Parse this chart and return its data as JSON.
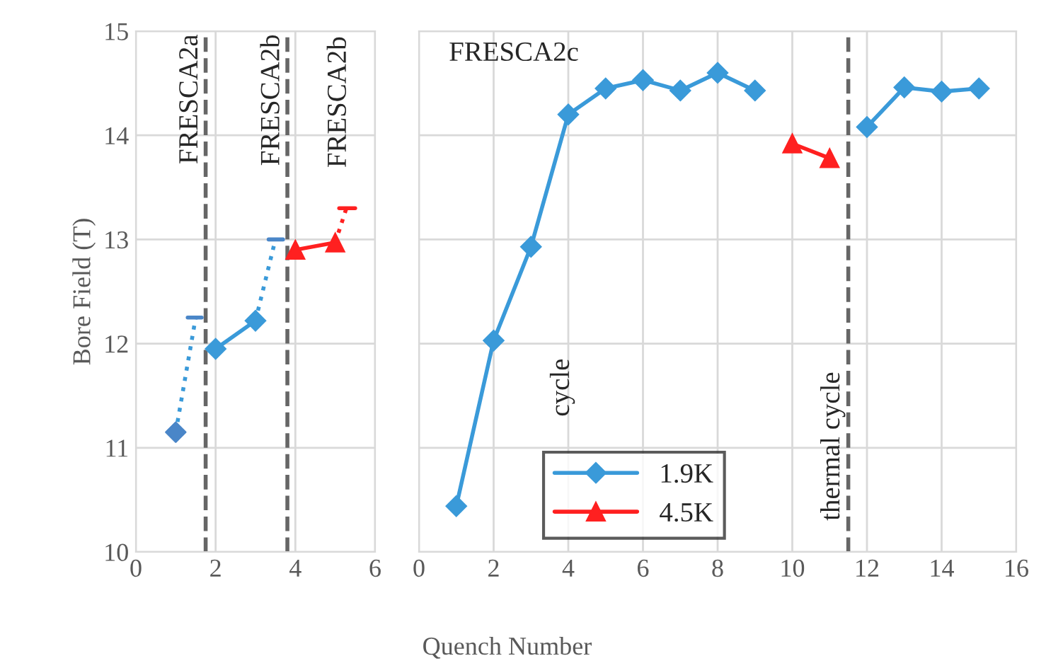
{
  "chart_data": [
    {
      "type": "line",
      "ylabel": "Bore Field (T)",
      "xlabel": "Quench Number",
      "xlim": [
        0,
        6
      ],
      "xticks": [
        0,
        2,
        4,
        6
      ],
      "ylim": [
        10,
        15
      ],
      "yticks": [
        10,
        11,
        12,
        13,
        14,
        15
      ],
      "grid": true,
      "series": [
        {
          "color": "#3a9ad9",
          "x": [
            1,
            1.5
          ],
          "values": [
            11.15,
            12.25
          ],
          "line_style": "dotted",
          "marker": "none"
        },
        {
          "color": "#4a86c8",
          "x": [
            1.3,
            1.65
          ],
          "values": [
            12.25,
            12.25
          ],
          "line_style": "solid",
          "marker": "none"
        },
        {
          "type": "scatter",
          "color": "#4a86c8",
          "x": [
            1
          ],
          "values": [
            11.15
          ],
          "marker": "diamond"
        },
        {
          "color": "#3a9ad9",
          "x": [
            2,
            3
          ],
          "values": [
            11.95,
            12.22
          ],
          "line_style": "solid",
          "marker": "diamond"
        },
        {
          "color": "#3a9ad9",
          "x": [
            3,
            3.5
          ],
          "values": [
            12.22,
            13.0
          ],
          "line_style": "dotted",
          "marker": "none"
        },
        {
          "color": "#4a86c8",
          "x": [
            3.33,
            3.69
          ],
          "values": [
            13.0,
            13.0
          ],
          "line_style": "solid",
          "marker": "none"
        },
        {
          "color": "#ff2020",
          "x": [
            4,
            5
          ],
          "values": [
            12.9,
            12.97
          ],
          "line_style": "solid",
          "marker": "triangle"
        },
        {
          "color": "#ff2020",
          "x": [
            5,
            5.28
          ],
          "values": [
            12.97,
            13.3
          ],
          "line_style": "dotted",
          "marker": "none"
        },
        {
          "color": "#ff2020",
          "x": [
            5.1,
            5.5
          ],
          "values": [
            13.3,
            13.3
          ],
          "line_style": "solid",
          "marker": "none"
        }
      ],
      "ref_lines": [
        {
          "axis": "x",
          "value": 1.75,
          "label": "FRESCA2a",
          "color": "#666666",
          "line_style": "dashed"
        },
        {
          "axis": "x",
          "value": 3.8,
          "label": "FRESCA2b",
          "color": "#666666",
          "line_style": "dashed"
        }
      ],
      "annotations": [
        "FRESCA2b"
      ]
    },
    {
      "type": "line",
      "title": "FRESCA2c",
      "xlim": [
        0,
        16
      ],
      "xticks": [
        0,
        2,
        4,
        6,
        8,
        10,
        12,
        14,
        16
      ],
      "ylim": [
        10,
        15
      ],
      "yticks": [
        10,
        11,
        12,
        13,
        14,
        15
      ],
      "grid": true,
      "tick_labels": "x",
      "legend": "bottom",
      "series": [
        {
          "name": "1.9K",
          "color": "#3a9ad9",
          "marker": "diamond",
          "line_style": "solid",
          "x": [
            1,
            2,
            3,
            4,
            5,
            6,
            7,
            8,
            9,
            10,
            11,
            12,
            13,
            14,
            15
          ],
          "values": [
            10.44,
            12.03,
            12.93,
            14.2,
            14.45,
            14.53,
            14.43,
            14.6,
            14.43,
            null,
            null,
            14.08,
            14.46,
            14.42,
            14.45
          ]
        },
        {
          "name": "4.5K",
          "color": "#ff2020",
          "marker": "triangle",
          "line_style": "solid",
          "x": [
            10,
            11
          ],
          "values": [
            13.92,
            13.78
          ]
        }
      ],
      "ref_lines": [
        {
          "axis": "x",
          "value": 11.5,
          "label": "thermal cycle",
          "color": "#666666",
          "line_style": "dashed"
        }
      ],
      "annotations": [
        "cycle"
      ]
    }
  ]
}
